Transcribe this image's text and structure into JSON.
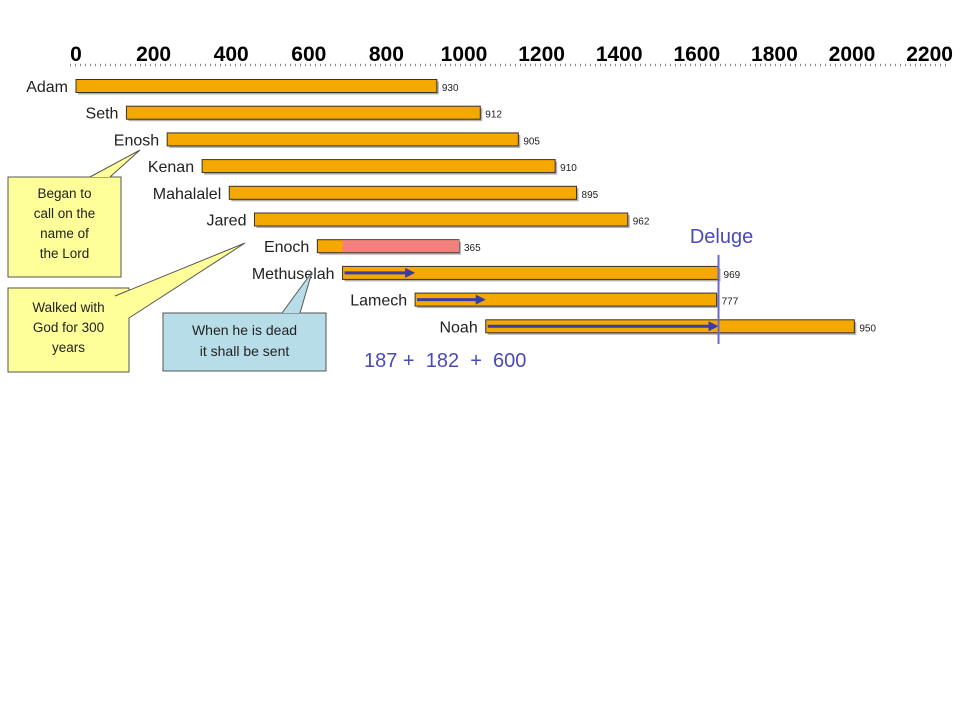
{
  "chart_data": {
    "type": "bar",
    "title": "",
    "xlabel": "",
    "ylabel": "",
    "xlim": [
      0,
      2200
    ],
    "x_ticks": [
      "0",
      "200",
      "400",
      "600",
      "800",
      "1000",
      "1200",
      "1400",
      "1600",
      "1800",
      "2000",
      "2200"
    ],
    "colors": {
      "bar_fill": "#f5a800",
      "bar_stroke": "#333333",
      "enoch_walk_fill": "#f47f7f",
      "arrow": "#3a3aa8",
      "deluge_line": "#6a6acc",
      "deluge_text": "#4a4ab8",
      "sum_text": "#4a4ab8",
      "callout_yellow": "#ffff99",
      "callout_blue": "#b7dde8"
    },
    "bars": [
      {
        "name": "Adam",
        "start": 0,
        "lifespan": 930,
        "label": "930"
      },
      {
        "name": "Seth",
        "start": 130,
        "lifespan": 912,
        "label": "912"
      },
      {
        "name": "Enosh",
        "start": 235,
        "lifespan": 905,
        "label": "905"
      },
      {
        "name": "Kenan",
        "start": 325,
        "lifespan": 910,
        "label": "910"
      },
      {
        "name": "Mahalalel",
        "start": 395,
        "lifespan": 895,
        "label": "895"
      },
      {
        "name": "Jared",
        "start": 460,
        "lifespan": 962,
        "label": "962"
      },
      {
        "name": "Enoch",
        "start": 622,
        "lifespan": 365,
        "label": "365",
        "walk_start": 687,
        "walk_years": 300
      },
      {
        "name": "Methuselah",
        "start": 687,
        "lifespan": 969,
        "label": "969",
        "arrow_years": 187
      },
      {
        "name": "Lamech",
        "start": 874,
        "lifespan": 777,
        "label": "777",
        "arrow_years": 182
      },
      {
        "name": "Noah",
        "start": 1056,
        "lifespan": 950,
        "label": "950",
        "arrow_years": 600
      }
    ],
    "deluge": {
      "year": 1656,
      "label": "Deluge"
    },
    "sum_text": "187 +  182  +  600",
    "annotations": [
      {
        "id": "enosh",
        "text": [
          "Began to",
          "call on the",
          "name of",
          "the Lord"
        ]
      },
      {
        "id": "enoch",
        "text": [
          "Walked with",
          "God for 300",
          "years"
        ]
      },
      {
        "id": "methuselah",
        "text": [
          "When he is dead",
          "it shall be sent"
        ]
      }
    ]
  }
}
